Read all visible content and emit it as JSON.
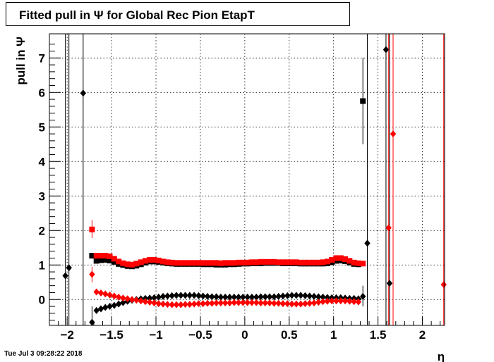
{
  "chart_data": {
    "type": "scatter",
    "title": "Fitted pull in  Ψ  for Global Rec Pion EtapT",
    "xlabel": "η",
    "ylabel": "pull in  Ψ",
    "xlim": [
      -2.2,
      2.25
    ],
    "ylim": [
      -0.75,
      7.7
    ],
    "grid": true,
    "x_ticks": [
      "−2",
      "−1.5",
      "−1",
      "−0.5",
      "0",
      "0.5",
      "1",
      "1.5",
      "2"
    ],
    "x_tick_values": [
      -2,
      -1.5,
      -1,
      -0.5,
      0,
      0.5,
      1,
      1.5,
      2
    ],
    "y_ticks": [
      "0",
      "1",
      "2",
      "3",
      "4",
      "5",
      "6",
      "7"
    ],
    "y_tick_values": [
      0,
      1,
      2,
      3,
      4,
      5,
      6,
      7
    ],
    "colors": {
      "black": "#000000",
      "red": "#ff0000"
    },
    "series": [
      {
        "marker": "square",
        "color": "#000000",
        "points": [
          [
            -1.72,
            1.27
          ],
          [
            -1.67,
            1.12
          ],
          [
            -1.62,
            1.14
          ],
          [
            -1.57,
            1.15
          ],
          [
            -1.52,
            1.13
          ],
          [
            -1.47,
            1.09
          ],
          [
            -1.42,
            1.03
          ],
          [
            -1.37,
            1.0
          ],
          [
            -1.32,
            0.97
          ],
          [
            -1.27,
            0.96
          ],
          [
            -1.22,
            0.98
          ],
          [
            -1.17,
            1.02
          ],
          [
            -1.12,
            1.07
          ],
          [
            -1.07,
            1.1
          ],
          [
            -1.02,
            1.1
          ],
          [
            -0.97,
            1.09
          ],
          [
            -0.92,
            1.07
          ],
          [
            -0.87,
            1.05
          ],
          [
            -0.82,
            1.04
          ],
          [
            -0.77,
            1.03
          ],
          [
            -0.72,
            1.03
          ],
          [
            -0.67,
            1.03
          ],
          [
            -0.62,
            1.03
          ],
          [
            -0.57,
            1.03
          ],
          [
            -0.52,
            1.03
          ],
          [
            -0.47,
            1.02
          ],
          [
            -0.42,
            1.02
          ],
          [
            -0.37,
            1.02
          ],
          [
            -0.32,
            1.01
          ],
          [
            -0.27,
            1.01
          ],
          [
            -0.22,
            1.01
          ],
          [
            -0.17,
            1.02
          ],
          [
            -0.12,
            1.02
          ],
          [
            -0.07,
            1.03
          ],
          [
            -0.02,
            1.04
          ],
          [
            0.03,
            1.04
          ],
          [
            0.08,
            1.05
          ],
          [
            0.13,
            1.05
          ],
          [
            0.18,
            1.05
          ],
          [
            0.23,
            1.06
          ],
          [
            0.28,
            1.06
          ],
          [
            0.33,
            1.06
          ],
          [
            0.38,
            1.06
          ],
          [
            0.43,
            1.05
          ],
          [
            0.48,
            1.05
          ],
          [
            0.53,
            1.05
          ],
          [
            0.58,
            1.05
          ],
          [
            0.63,
            1.04
          ],
          [
            0.68,
            1.04
          ],
          [
            0.73,
            1.04
          ],
          [
            0.78,
            1.04
          ],
          [
            0.83,
            1.04
          ],
          [
            0.88,
            1.04
          ],
          [
            0.93,
            1.05
          ],
          [
            0.98,
            1.08
          ],
          [
            1.03,
            1.12
          ],
          [
            1.08,
            1.13
          ],
          [
            1.13,
            1.11
          ],
          [
            1.18,
            1.07
          ],
          [
            1.23,
            1.03
          ],
          [
            1.28,
            1.02
          ],
          [
            1.33,
            5.75
          ]
        ],
        "errors": [
          [
            1.33,
            4.5,
            7.0
          ]
        ]
      },
      {
        "marker": "square",
        "color": "#ff0000",
        "points": [
          [
            -1.72,
            2.03
          ],
          [
            -1.67,
            1.27
          ],
          [
            -1.62,
            1.27
          ],
          [
            -1.57,
            1.27
          ],
          [
            -1.52,
            1.25
          ],
          [
            -1.47,
            1.18
          ],
          [
            -1.42,
            1.1
          ],
          [
            -1.37,
            1.05
          ],
          [
            -1.32,
            1.02
          ],
          [
            -1.27,
            1.01
          ],
          [
            -1.22,
            1.04
          ],
          [
            -1.17,
            1.08
          ],
          [
            -1.12,
            1.12
          ],
          [
            -1.07,
            1.15
          ],
          [
            -1.02,
            1.15
          ],
          [
            -0.97,
            1.13
          ],
          [
            -0.92,
            1.1
          ],
          [
            -0.87,
            1.08
          ],
          [
            -0.82,
            1.07
          ],
          [
            -0.77,
            1.06
          ],
          [
            -0.72,
            1.06
          ],
          [
            -0.67,
            1.06
          ],
          [
            -0.62,
            1.06
          ],
          [
            -0.57,
            1.06
          ],
          [
            -0.52,
            1.06
          ],
          [
            -0.47,
            1.06
          ],
          [
            -0.42,
            1.06
          ],
          [
            -0.37,
            1.06
          ],
          [
            -0.32,
            1.06
          ],
          [
            -0.27,
            1.05
          ],
          [
            -0.22,
            1.06
          ],
          [
            -0.17,
            1.06
          ],
          [
            -0.12,
            1.06
          ],
          [
            -0.07,
            1.07
          ],
          [
            -0.02,
            1.07
          ],
          [
            0.03,
            1.07
          ],
          [
            0.08,
            1.08
          ],
          [
            0.13,
            1.08
          ],
          [
            0.18,
            1.09
          ],
          [
            0.23,
            1.09
          ],
          [
            0.28,
            1.09
          ],
          [
            0.33,
            1.09
          ],
          [
            0.38,
            1.08
          ],
          [
            0.43,
            1.08
          ],
          [
            0.48,
            1.08
          ],
          [
            0.53,
            1.08
          ],
          [
            0.58,
            1.08
          ],
          [
            0.63,
            1.07
          ],
          [
            0.68,
            1.07
          ],
          [
            0.73,
            1.07
          ],
          [
            0.78,
            1.07
          ],
          [
            0.83,
            1.07
          ],
          [
            0.88,
            1.08
          ],
          [
            0.93,
            1.1
          ],
          [
            0.98,
            1.15
          ],
          [
            1.03,
            1.2
          ],
          [
            1.08,
            1.2
          ],
          [
            1.13,
            1.17
          ],
          [
            1.18,
            1.12
          ],
          [
            1.23,
            1.07
          ],
          [
            1.28,
            1.05
          ],
          [
            1.33,
            1.04
          ]
        ],
        "errors": [
          [
            -1.72,
            1.78,
            2.3
          ]
        ]
      },
      {
        "marker": "diamond",
        "color": "#000000",
        "points": [
          [
            -2.02,
            0.69
          ],
          [
            -1.98,
            0.92
          ],
          [
            -1.82,
            5.98
          ],
          [
            -1.72,
            -0.66
          ],
          [
            -1.67,
            -0.32
          ],
          [
            -1.62,
            -0.27
          ],
          [
            -1.57,
            -0.23
          ],
          [
            -1.52,
            -0.2
          ],
          [
            -1.47,
            -0.17
          ],
          [
            -1.42,
            -0.13
          ],
          [
            -1.37,
            -0.09
          ],
          [
            -1.32,
            -0.05
          ],
          [
            -1.27,
            -0.02
          ],
          [
            -1.22,
            0.0
          ],
          [
            -1.17,
            0.02
          ],
          [
            -1.12,
            0.03
          ],
          [
            -1.07,
            0.04
          ],
          [
            -1.02,
            0.05
          ],
          [
            -0.97,
            0.07
          ],
          [
            -0.92,
            0.09
          ],
          [
            -0.87,
            0.1
          ],
          [
            -0.82,
            0.11
          ],
          [
            -0.77,
            0.12
          ],
          [
            -0.72,
            0.12
          ],
          [
            -0.67,
            0.12
          ],
          [
            -0.62,
            0.12
          ],
          [
            -0.57,
            0.12
          ],
          [
            -0.52,
            0.11
          ],
          [
            -0.47,
            0.1
          ],
          [
            -0.42,
            0.09
          ],
          [
            -0.37,
            0.08
          ],
          [
            -0.32,
            0.08
          ],
          [
            -0.27,
            0.07
          ],
          [
            -0.22,
            0.07
          ],
          [
            -0.17,
            0.07
          ],
          [
            -0.12,
            0.07
          ],
          [
            -0.07,
            0.07
          ],
          [
            -0.02,
            0.07
          ],
          [
            0.03,
            0.07
          ],
          [
            0.08,
            0.07
          ],
          [
            0.13,
            0.07
          ],
          [
            0.18,
            0.08
          ],
          [
            0.23,
            0.08
          ],
          [
            0.28,
            0.08
          ],
          [
            0.33,
            0.08
          ],
          [
            0.38,
            0.09
          ],
          [
            0.43,
            0.1
          ],
          [
            0.48,
            0.11
          ],
          [
            0.53,
            0.12
          ],
          [
            0.58,
            0.12
          ],
          [
            0.63,
            0.12
          ],
          [
            0.68,
            0.11
          ],
          [
            0.73,
            0.1
          ],
          [
            0.78,
            0.09
          ],
          [
            0.83,
            0.08
          ],
          [
            0.88,
            0.07
          ],
          [
            0.93,
            0.06
          ],
          [
            0.98,
            0.05
          ],
          [
            1.03,
            0.05
          ],
          [
            1.08,
            0.05
          ],
          [
            1.13,
            0.04
          ],
          [
            1.18,
            0.03
          ],
          [
            1.23,
            0.03
          ],
          [
            1.28,
            0.02
          ],
          [
            1.33,
            0.09
          ],
          [
            1.38,
            1.63
          ],
          [
            1.59,
            7.24
          ],
          [
            1.63,
            0.47
          ]
        ],
        "errors": [
          [
            -2.02,
            -0.8,
            7.8
          ],
          [
            -1.98,
            -0.8,
            7.8
          ],
          [
            -1.82,
            -0.8,
            7.8
          ],
          [
            -1.72,
            -0.8,
            -0.2
          ],
          [
            1.33,
            -0.2,
            0.4
          ],
          [
            1.38,
            -0.8,
            7.8
          ],
          [
            1.59,
            -0.8,
            7.8
          ],
          [
            1.63,
            -0.8,
            7.8
          ]
        ]
      },
      {
        "marker": "diamond",
        "color": "#ff0000",
        "points": [
          [
            -1.72,
            0.73
          ],
          [
            -1.67,
            0.22
          ],
          [
            -1.62,
            0.19
          ],
          [
            -1.57,
            0.16
          ],
          [
            -1.52,
            0.13
          ],
          [
            -1.47,
            0.1
          ],
          [
            -1.42,
            0.07
          ],
          [
            -1.37,
            0.04
          ],
          [
            -1.32,
            0.02
          ],
          [
            -1.27,
            0.0
          ],
          [
            -1.22,
            -0.02
          ],
          [
            -1.17,
            -0.04
          ],
          [
            -1.12,
            -0.06
          ],
          [
            -1.07,
            -0.08
          ],
          [
            -1.02,
            -0.1
          ],
          [
            -0.97,
            -0.12
          ],
          [
            -0.92,
            -0.13
          ],
          [
            -0.87,
            -0.14
          ],
          [
            -0.82,
            -0.15
          ],
          [
            -0.77,
            -0.15
          ],
          [
            -0.72,
            -0.15
          ],
          [
            -0.67,
            -0.14
          ],
          [
            -0.62,
            -0.14
          ],
          [
            -0.57,
            -0.13
          ],
          [
            -0.52,
            -0.12
          ],
          [
            -0.47,
            -0.12
          ],
          [
            -0.42,
            -0.11
          ],
          [
            -0.37,
            -0.11
          ],
          [
            -0.32,
            -0.1
          ],
          [
            -0.27,
            -0.1
          ],
          [
            -0.22,
            -0.1
          ],
          [
            -0.17,
            -0.1
          ],
          [
            -0.12,
            -0.09
          ],
          [
            -0.07,
            -0.09
          ],
          [
            -0.02,
            -0.09
          ],
          [
            0.03,
            -0.09
          ],
          [
            0.08,
            -0.09
          ],
          [
            0.13,
            -0.09
          ],
          [
            0.18,
            -0.1
          ],
          [
            0.23,
            -0.1
          ],
          [
            0.28,
            -0.1
          ],
          [
            0.33,
            -0.11
          ],
          [
            0.38,
            -0.11
          ],
          [
            0.43,
            -0.12
          ],
          [
            0.48,
            -0.12
          ],
          [
            0.53,
            -0.13
          ],
          [
            0.58,
            -0.13
          ],
          [
            0.63,
            -0.13
          ],
          [
            0.68,
            -0.12
          ],
          [
            0.73,
            -0.11
          ],
          [
            0.78,
            -0.1
          ],
          [
            0.83,
            -0.08
          ],
          [
            0.88,
            -0.06
          ],
          [
            0.93,
            -0.05
          ],
          [
            0.98,
            -0.04
          ],
          [
            1.03,
            -0.04
          ],
          [
            1.08,
            -0.04
          ],
          [
            1.13,
            -0.04
          ],
          [
            1.18,
            -0.05
          ],
          [
            1.23,
            -0.06
          ],
          [
            1.28,
            -0.07
          ],
          [
            1.62,
            2.08
          ],
          [
            1.67,
            4.8
          ],
          [
            2.24,
            0.43
          ]
        ],
        "errors": [
          [
            -1.72,
            0.5,
            0.95
          ],
          [
            1.62,
            -0.8,
            7.8
          ],
          [
            1.67,
            -0.8,
            7.8
          ],
          [
            2.24,
            -0.8,
            7.8
          ]
        ]
      }
    ]
  },
  "footer": {
    "timestamp": "Tue Jul  3 09:28:22 2018"
  }
}
